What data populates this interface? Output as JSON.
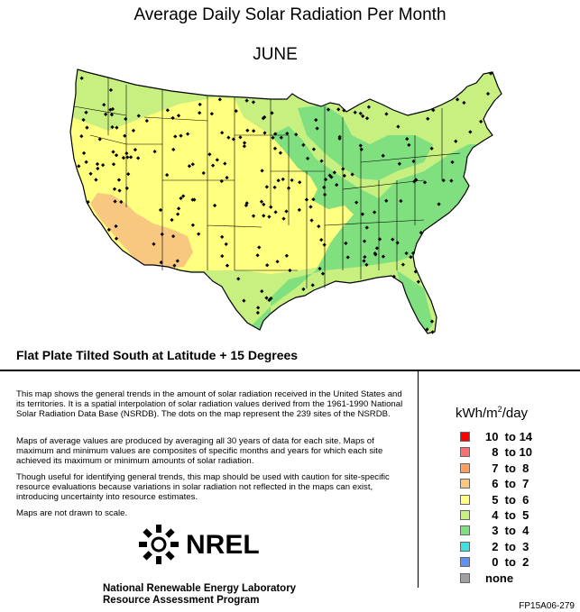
{
  "header": {
    "title": "Average Daily Solar Radiation Per Month",
    "month": "JUNE"
  },
  "subtitle": "Flat Plate Tilted South at Latitude + 15 Degrees",
  "description": [
    "This map shows the general trends in the amount of solar radiation received in the United States and its territories.  It is a spatial interpolation of solar radiation values derived from the 1961-1990 National Solar Radiation Data Base (NSRDB).  The dots on the map represent the 239 sites of the NSRDB.",
    "Maps of average values are produced by averaging all 30 years of data for each site. Maps of maximum and minimum values are composites of specific months and years for which each site achieved its maximum or minimum amounts of solar radiation.",
    "Though useful for identifying general trends, this map should be used with caution for site-specific resource evaluations because variations in solar radiation not reflected in the maps can exist, introducing uncertainty into resource estimates.",
    "Maps are not drawn to scale."
  ],
  "logo": {
    "text": "NREL",
    "icon": "nrel-sun-logo"
  },
  "lab": {
    "line1": "National Renewable Energy Laboratory",
    "line2": "Resource Assessment Program"
  },
  "code": "FP15A06-279",
  "legend": {
    "unit_prefix": "kWh/m",
    "unit_sup": "2",
    "unit_suffix": "/day",
    "items": [
      {
        "label": "10  to 14",
        "color": "#ff0000"
      },
      {
        "label": "  8  to 10",
        "color": "#ff7070"
      },
      {
        "label": "  7  to  8",
        "color": "#ffa060"
      },
      {
        "label": "  6  to  7",
        "color": "#f8c880"
      },
      {
        "label": "  5  to  6",
        "color": "#ffff80"
      },
      {
        "label": "  4  to  5",
        "color": "#c8f080"
      },
      {
        "label": "  3  to  4",
        "color": "#80e080"
      },
      {
        "label": "  2  to  3",
        "color": "#40e0e0"
      },
      {
        "label": "  0  to  2",
        "color": "#6090f0"
      },
      {
        "label": "none",
        "color": "#a0a0a0"
      }
    ]
  },
  "map_colors": {
    "zone_6_7": "#f8c880",
    "zone_5_6": "#ffff80",
    "zone_4_5": "#c8f080",
    "zone_3_4": "#80e080"
  }
}
